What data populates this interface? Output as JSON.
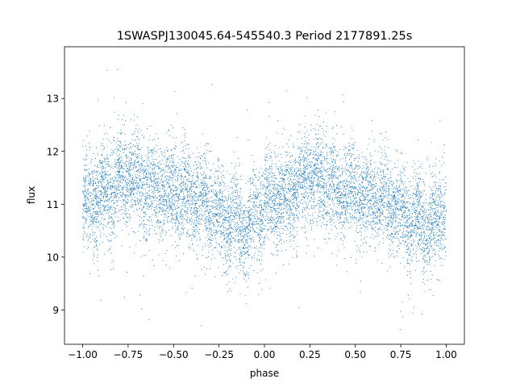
{
  "chart_data": {
    "type": "scatter",
    "title": "1SWASPJ130045.64-545540.3 Period 2177891.25s",
    "xlabel": "phase",
    "ylabel": "flux",
    "xlim": [
      -1.1,
      1.1
    ],
    "ylim": [
      8.35,
      13.98
    ],
    "grid": false,
    "xticks": [
      -1.0,
      -0.75,
      -0.5,
      -0.25,
      0.0,
      0.25,
      0.5,
      0.75,
      1.0
    ],
    "xtick_labels": [
      "−1.00",
      "−0.75",
      "−0.50",
      "−0.25",
      "0.00",
      "0.25",
      "0.50",
      "0.75",
      "1.00"
    ],
    "yticks": [
      9,
      10,
      11,
      12,
      13
    ],
    "ytick_labels": [
      "9",
      "10",
      "11",
      "12",
      "13"
    ],
    "marker_color": "#1f77b4",
    "series": [
      {
        "phase_range": [
          -1.0,
          1.0
        ],
        "period_in_phase": 1.0,
        "mean_flux_profile": [
          [
            0.0,
            10.95
          ],
          [
            0.05,
            11.1
          ],
          [
            0.1,
            11.15
          ],
          [
            0.15,
            11.2
          ],
          [
            0.2,
            11.4
          ],
          [
            0.25,
            11.55
          ],
          [
            0.3,
            11.5
          ],
          [
            0.35,
            11.35
          ],
          [
            0.4,
            11.25
          ],
          [
            0.45,
            11.3
          ],
          [
            0.5,
            11.2
          ],
          [
            0.55,
            11.15
          ],
          [
            0.6,
            11.15
          ],
          [
            0.65,
            11.05
          ],
          [
            0.7,
            11.0
          ],
          [
            0.75,
            10.85
          ],
          [
            0.8,
            10.6
          ],
          [
            0.85,
            10.75
          ],
          [
            0.9,
            10.5
          ],
          [
            0.95,
            10.75
          ],
          [
            1.0,
            10.95
          ]
        ],
        "flux_min": 8.6,
        "flux_max": 13.75,
        "typical_spread": 0.45
      }
    ]
  }
}
